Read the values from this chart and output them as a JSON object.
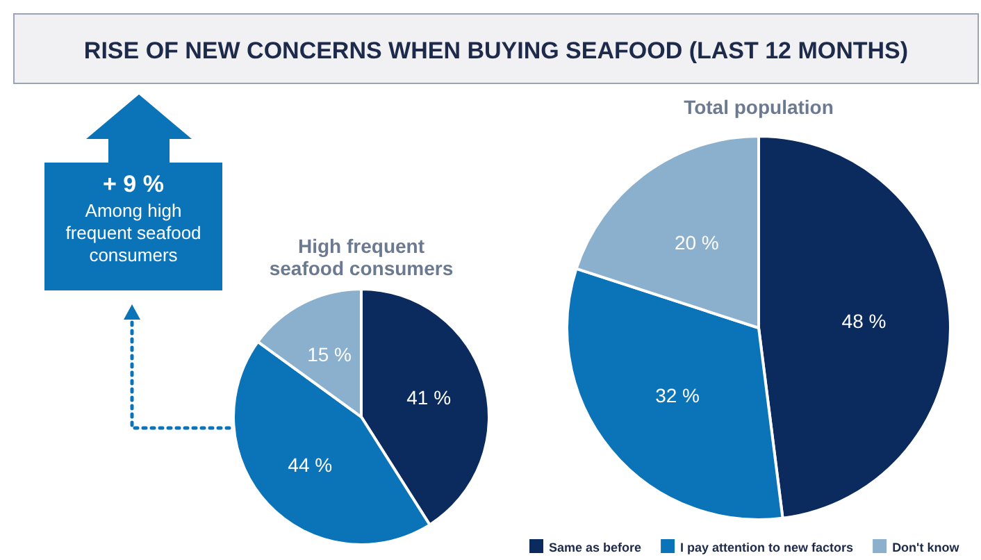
{
  "chart_data": [
    {
      "type": "other",
      "title": "RISE OF NEW CONCERNS WHEN BUYING SEAFOOD (LAST 12 MONTHS)",
      "annotations": [
        "+ 9 %",
        "Among high frequent seafood consumers"
      ]
    },
    {
      "type": "pie",
      "title": "High frequent seafood consumers",
      "values": [
        41,
        44,
        15
      ],
      "colors": [
        "#0b2b5e",
        "#0b74b9",
        "#8ab0cd"
      ],
      "value_labels": [
        "41 %",
        "44 %",
        "15 %"
      ],
      "legend": false
    },
    {
      "type": "pie",
      "title": "Total population",
      "categories": [
        "Same as before",
        "I pay attention to new factors",
        "Don't know"
      ],
      "values": [
        48,
        32,
        20
      ],
      "colors": [
        "#0b2b5e",
        "#0b74b9",
        "#8ab0cd"
      ],
      "value_labels": [
        "48 %",
        "32 %",
        "20 %"
      ],
      "legend": "bottom"
    }
  ]
}
